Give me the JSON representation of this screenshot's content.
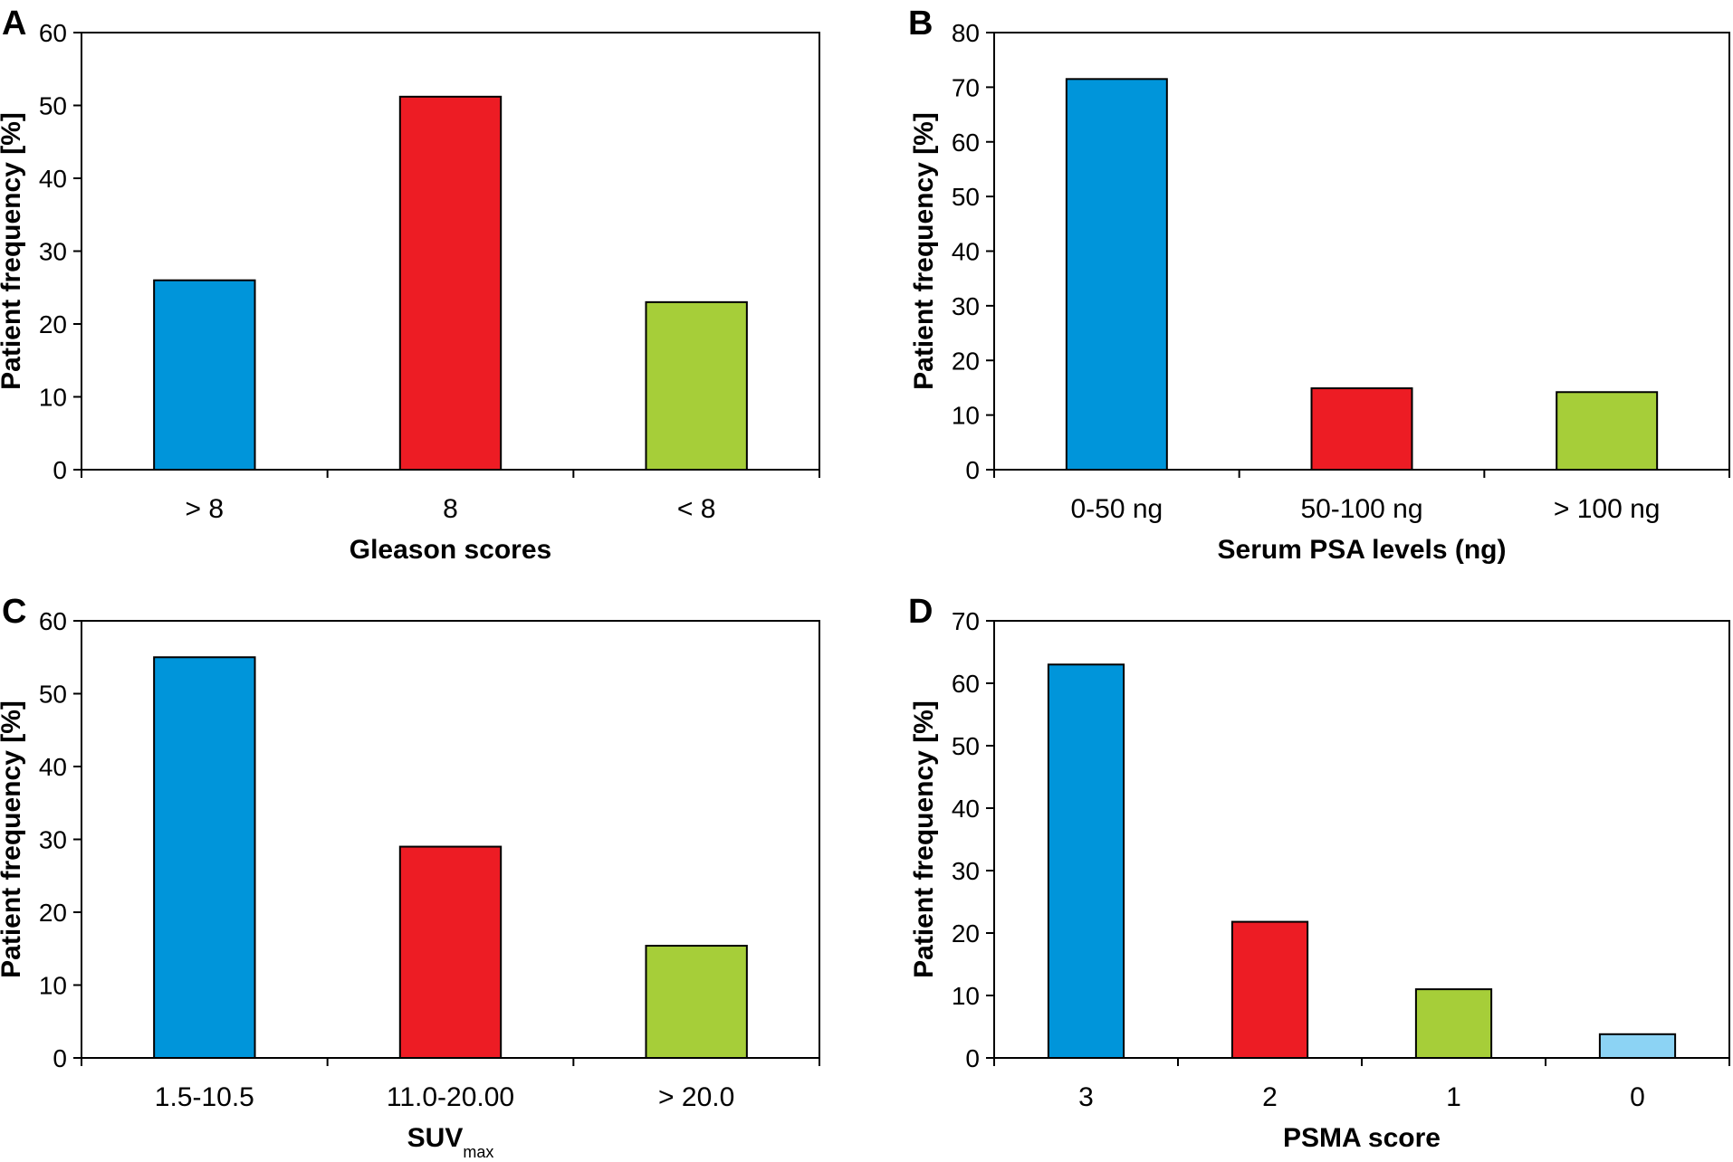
{
  "chart_data": [
    {
      "panel": "A",
      "type": "bar",
      "categories": [
        "> 8",
        "8",
        "< 8"
      ],
      "values": [
        26,
        51.2,
        23
      ],
      "colors": [
        "#0095DA",
        "#ED1C24",
        "#A6CE39"
      ],
      "xlabel": "Gleason scores",
      "ylabel": "Patient frequency [%]",
      "ylim": [
        0,
        60
      ],
      "yticks": [
        0,
        10,
        20,
        30,
        40,
        50,
        60
      ],
      "grid": false
    },
    {
      "panel": "B",
      "type": "bar",
      "categories": [
        "0-50 ng",
        "50-100 ng",
        "> 100 ng"
      ],
      "values": [
        71.5,
        14.9,
        14.2
      ],
      "colors": [
        "#0095DA",
        "#ED1C24",
        "#A6CE39"
      ],
      "xlabel": "Serum PSA levels (ng)",
      "ylabel": "Patient frequency [%]",
      "ylim": [
        0,
        80
      ],
      "yticks": [
        0,
        10,
        20,
        30,
        40,
        50,
        60,
        70,
        80
      ],
      "grid": false
    },
    {
      "panel": "C",
      "type": "bar",
      "categories": [
        "1.5-10.5",
        "11.0-20.00",
        "> 20.0"
      ],
      "values": [
        55,
        29,
        15.4
      ],
      "colors": [
        "#0095DA",
        "#ED1C24",
        "#A6CE39"
      ],
      "xlabel": "SUV",
      "xlabel_sub": "max",
      "ylabel": "Patient frequency [%]",
      "ylim": [
        0,
        60
      ],
      "yticks": [
        0,
        10,
        20,
        30,
        40,
        50,
        60
      ],
      "grid": false
    },
    {
      "panel": "D",
      "type": "bar",
      "categories": [
        "3",
        "2",
        "1",
        "0"
      ],
      "values": [
        63,
        21.8,
        11,
        3.8
      ],
      "colors": [
        "#0095DA",
        "#ED1C24",
        "#A6CE39",
        "#8CD3F4"
      ],
      "xlabel": "PSMA score",
      "ylabel": "Patient frequency [%]",
      "ylim": [
        0,
        70
      ],
      "yticks": [
        0,
        10,
        20,
        30,
        40,
        50,
        60,
        70
      ],
      "grid": false
    }
  ]
}
